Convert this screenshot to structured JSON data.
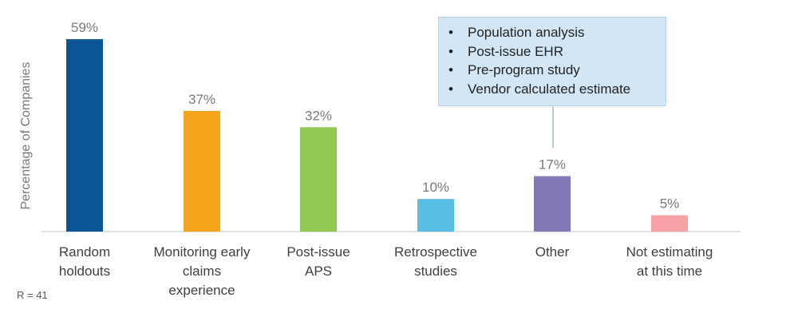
{
  "chart_data": {
    "type": "bar",
    "categories": [
      [
        "Random",
        "holdouts"
      ],
      [
        "Monitoring early",
        "claims",
        "experience"
      ],
      [
        "Post-issue",
        "APS"
      ],
      [
        "Retrospective",
        "studies"
      ],
      [
        "Other"
      ],
      [
        "Not estimating",
        "at this time"
      ]
    ],
    "values": [
      59,
      37,
      32,
      10,
      17,
      5
    ],
    "value_labels": [
      "59%",
      "37%",
      "32%",
      "10%",
      "17%",
      "5%"
    ],
    "colors": [
      "#0b5596",
      "#f7a41d",
      "#92c852",
      "#56bfe3",
      "#8279b8",
      "#f6a2a6"
    ],
    "ylabel": "Percentage of Companies",
    "ylim": [
      0,
      60
    ],
    "grid": false,
    "callout": {
      "target_category": "Other",
      "items": [
        "Population analysis",
        "Post-issue EHR",
        "Pre-program study",
        "Vendor calculated estimate"
      ]
    }
  },
  "note": "R = 41"
}
